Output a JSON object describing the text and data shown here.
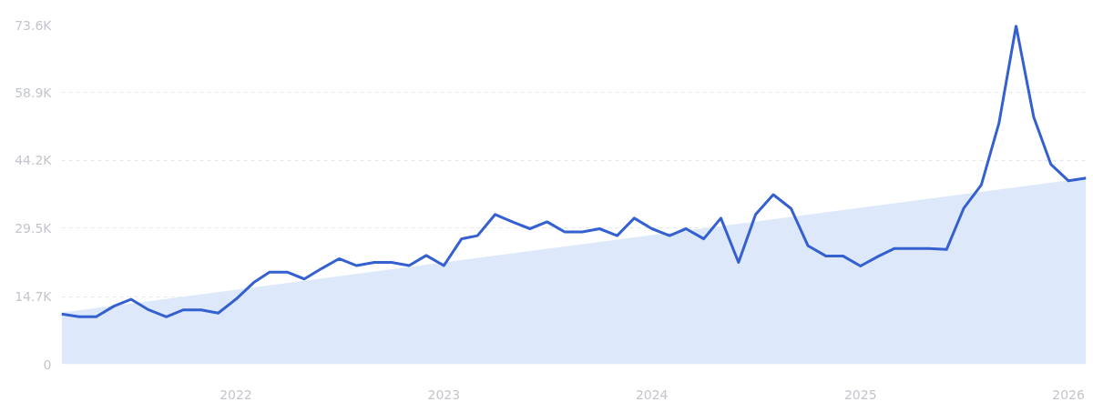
{
  "chart_data": {
    "type": "line",
    "xlim": [
      "2021-03",
      "2026-02"
    ],
    "ylim": [
      0,
      73600
    ],
    "yticks": [
      0,
      {
        "value": 14700,
        "label": "14.7K"
      },
      {
        "value": 29500,
        "label": "29.5K"
      },
      {
        "value": 44200,
        "label": "44.2K"
      },
      {
        "value": 58900,
        "label": "58.9K"
      },
      {
        "value": 73600,
        "label": "73.6K"
      }
    ],
    "xticks": [
      {
        "value": "2022-01",
        "label": "2022"
      },
      {
        "value": "2023-01",
        "label": "2023"
      },
      {
        "value": "2024-01",
        "label": "2024"
      },
      {
        "value": "2025-01",
        "label": "2025"
      },
      {
        "value": "2026-01",
        "label": "2026"
      }
    ],
    "grid": "y",
    "line_style": "solid",
    "series": [
      {
        "type": "area",
        "color": "#dde9fa",
        "x": [
          "2021-03",
          "2026-02"
        ],
        "values": [
          11200,
          40400
        ]
      },
      {
        "color": "#3560d0",
        "x": [
          "2021-03",
          "2021-04",
          "2021-05",
          "2021-06",
          "2021-07",
          "2021-08",
          "2021-09",
          "2021-10",
          "2021-11",
          "2021-12",
          "2022-01",
          "2022-02",
          "2022-03",
          "2022-04",
          "2022-05",
          "2022-06",
          "2022-07",
          "2022-08",
          "2022-09",
          "2022-10",
          "2022-11",
          "2022-12",
          "2023-01",
          "2023-02",
          "2023-03",
          "2023-04",
          "2023-05",
          "2023-06",
          "2023-07",
          "2023-08",
          "2023-09",
          "2023-10",
          "2023-11",
          "2023-12",
          "2024-01",
          "2024-02",
          "2024-03",
          "2024-04",
          "2024-05",
          "2024-06",
          "2024-07",
          "2024-08",
          "2024-09",
          "2024-10",
          "2024-11",
          "2024-12",
          "2025-01",
          "2025-02",
          "2025-03",
          "2025-04",
          "2025-05",
          "2025-06",
          "2025-07",
          "2025-08",
          "2025-09",
          "2025-10",
          "2025-11",
          "2025-12",
          "2026-01",
          "2026-02"
        ],
        "values": [
          10900,
          10300,
          10300,
          12600,
          14100,
          11800,
          10300,
          11800,
          11800,
          11100,
          14100,
          17700,
          20000,
          20000,
          18500,
          20800,
          22900,
          21400,
          22100,
          22100,
          21400,
          23600,
          21400,
          27200,
          27900,
          32500,
          30900,
          29400,
          30900,
          28700,
          28700,
          29400,
          27900,
          31700,
          29400,
          27900,
          29400,
          27200,
          31700,
          22100,
          32500,
          36800,
          33800,
          25700,
          23500,
          23500,
          21300,
          23400,
          25100,
          25100,
          25100,
          24900,
          33800,
          38900,
          52300,
          73400,
          53600,
          43400,
          39800,
          40400
        ]
      }
    ]
  }
}
